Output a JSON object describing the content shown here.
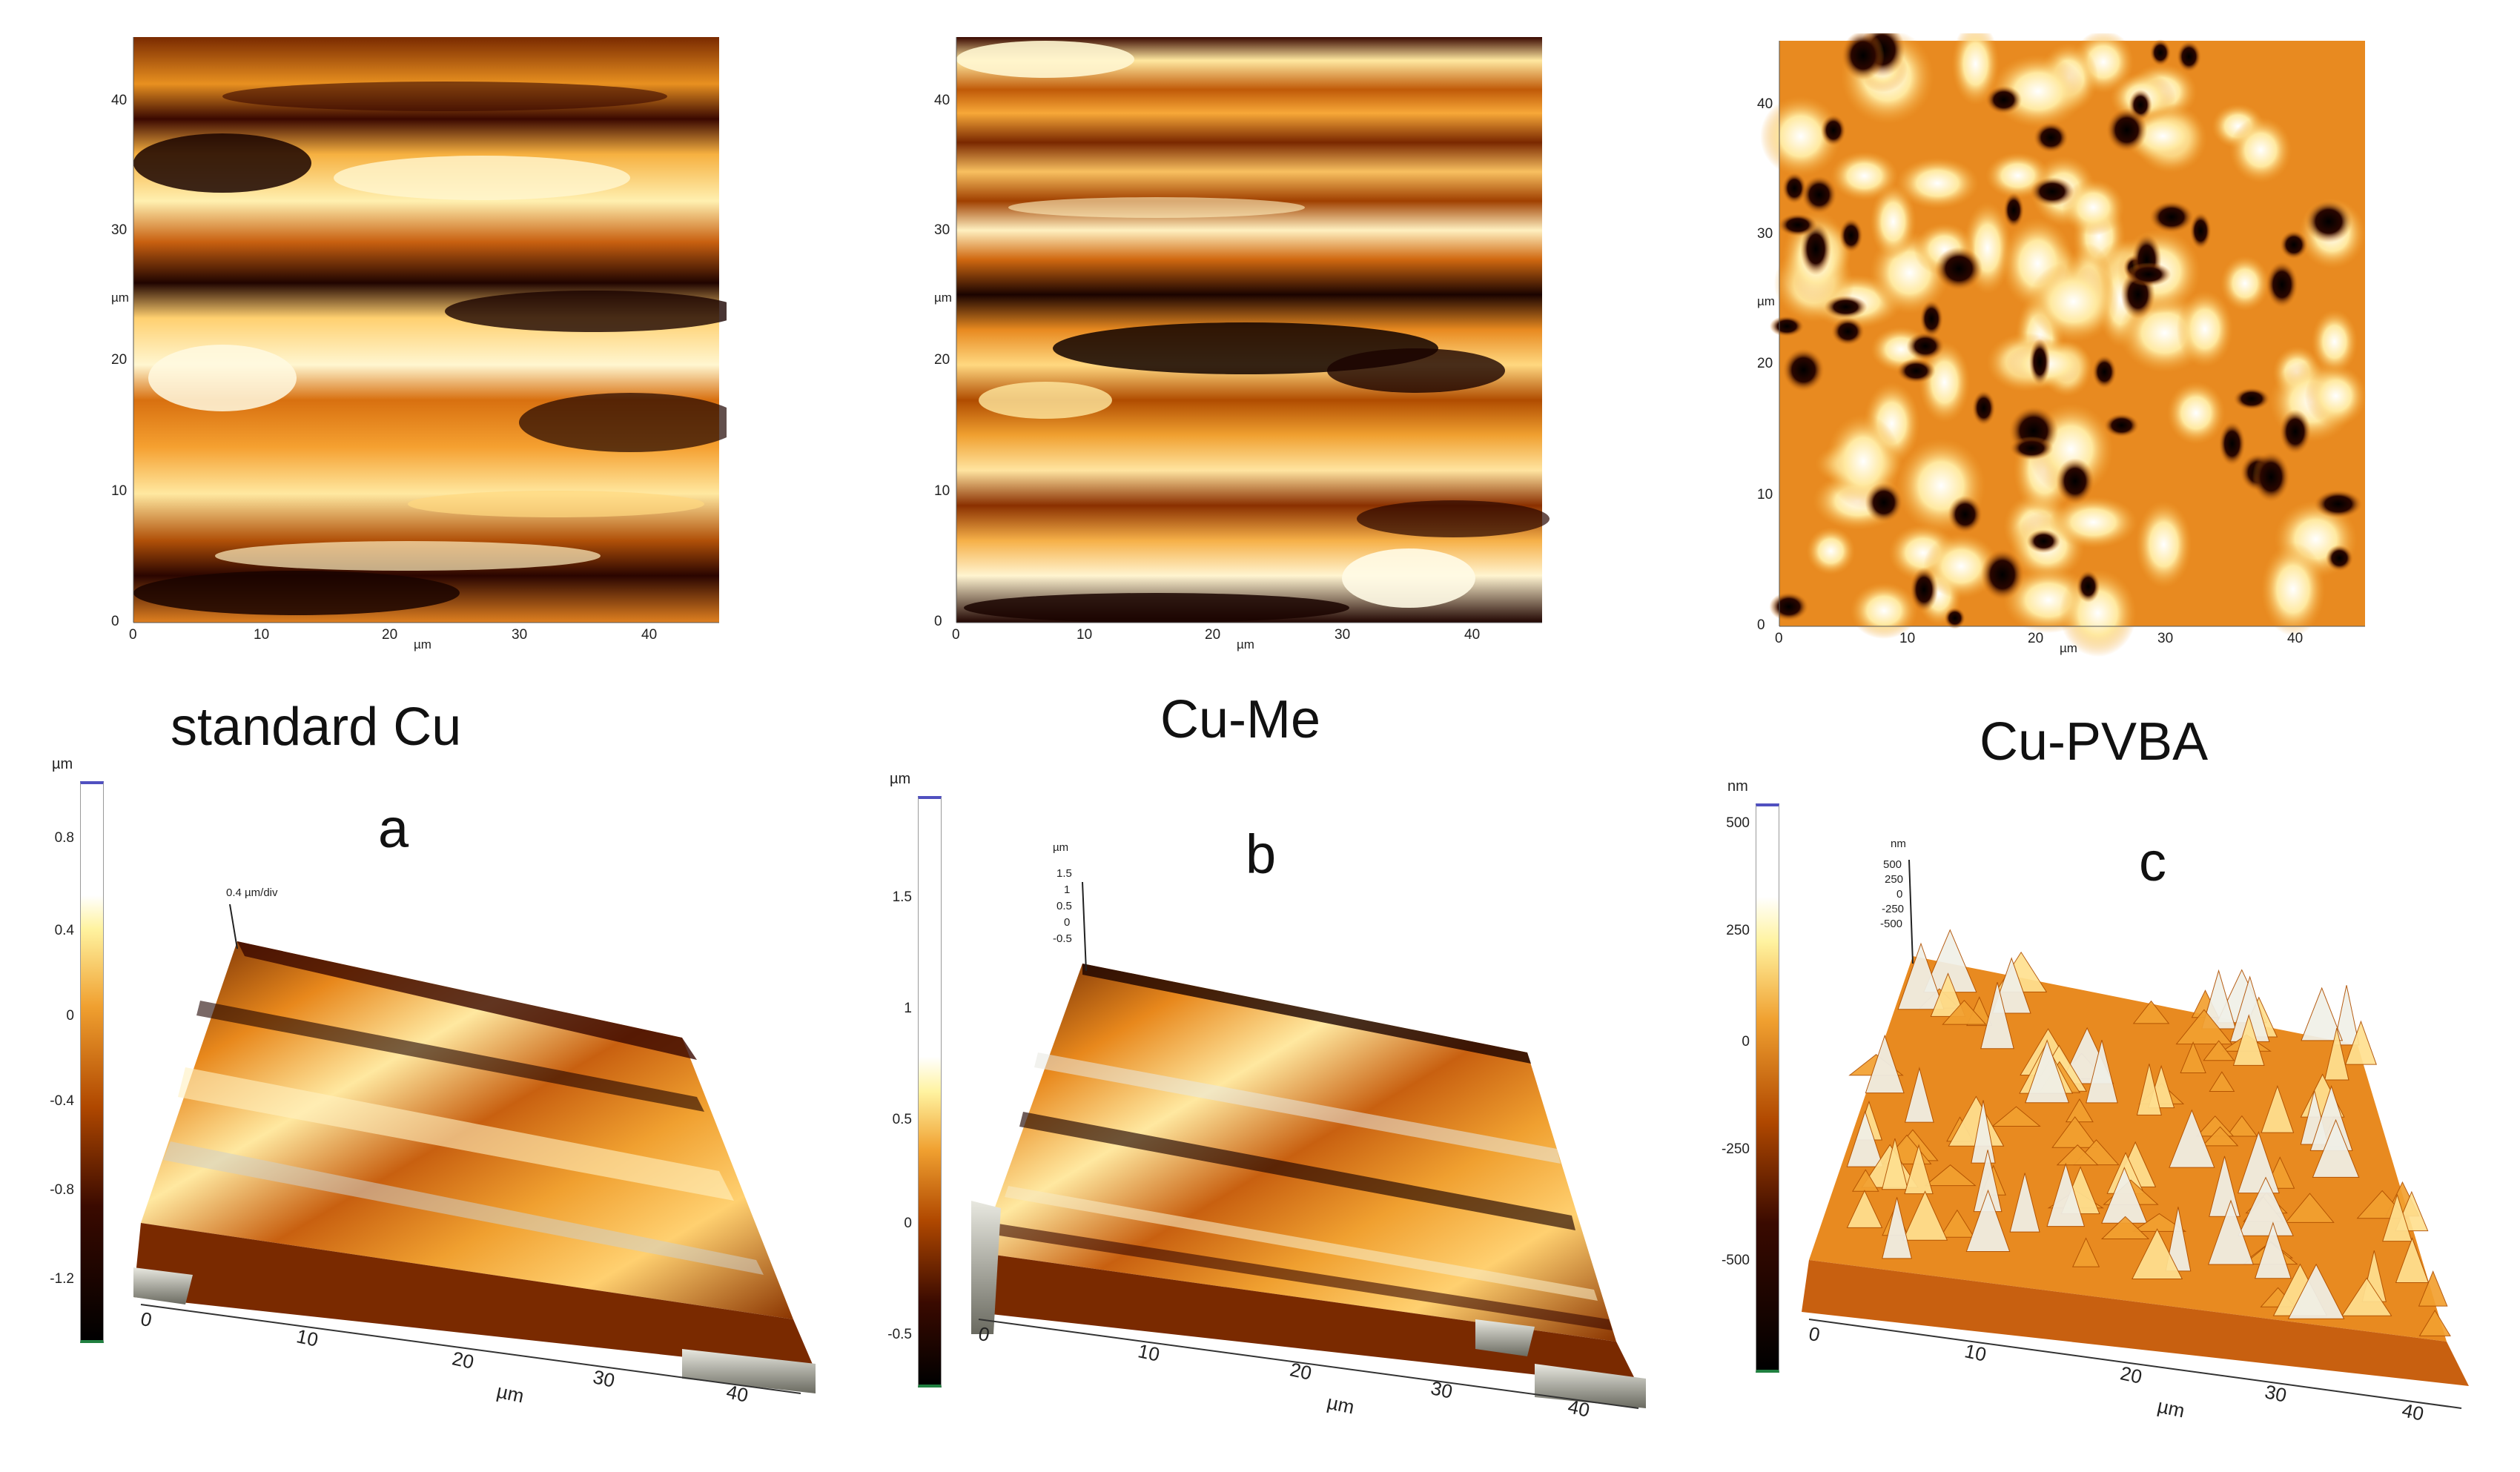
{
  "captions": {
    "a": "standard Cu",
    "b": "Cu-Me",
    "c": "Cu-PVBA"
  },
  "panel_letters": {
    "a": "a",
    "b": "b",
    "c": "c"
  },
  "afm2d": {
    "unit_x": "µm",
    "unit_y": "µm",
    "x_ticks": [
      "0",
      "10",
      "20",
      "30",
      "40"
    ],
    "y_ticks": [
      "0",
      "10",
      "20",
      "30",
      "40"
    ]
  },
  "afm3d": {
    "a": {
      "colorbar_unit": "µm",
      "colorbar_ticks": [
        "0.8",
        "0.4",
        "0",
        "-0.4",
        "-0.8",
        "-1.2"
      ],
      "z_label": "0.4 µm/div",
      "x_ticks": [
        "0",
        "10",
        "20",
        "30",
        "40"
      ],
      "x_unit": "µm"
    },
    "b": {
      "colorbar_unit": "µm",
      "colorbar_ticks": [
        "1.5",
        "1",
        "0.5",
        "0",
        "-0.5"
      ],
      "z_unit": "µm",
      "z_ticks": [
        "1.5",
        "1",
        "0.5",
        "0",
        "-0.5"
      ],
      "x_ticks": [
        "0",
        "10",
        "20",
        "30",
        "40"
      ],
      "x_unit": "µm"
    },
    "c": {
      "colorbar_unit": "nm",
      "colorbar_ticks": [
        "500",
        "250",
        "0",
        "-250",
        "-500"
      ],
      "z_unit": "nm",
      "z_ticks": [
        "500",
        "250",
        "0",
        "-250",
        "-500"
      ],
      "x_ticks": [
        "0",
        "10",
        "20",
        "30",
        "40"
      ],
      "x_unit": "µm"
    }
  },
  "colors": {
    "dark": "#1a0500",
    "mid": "#e07a10",
    "light": "#fff3c0",
    "bar_top": "#5050c0",
    "bar_bottom": "#208040"
  }
}
